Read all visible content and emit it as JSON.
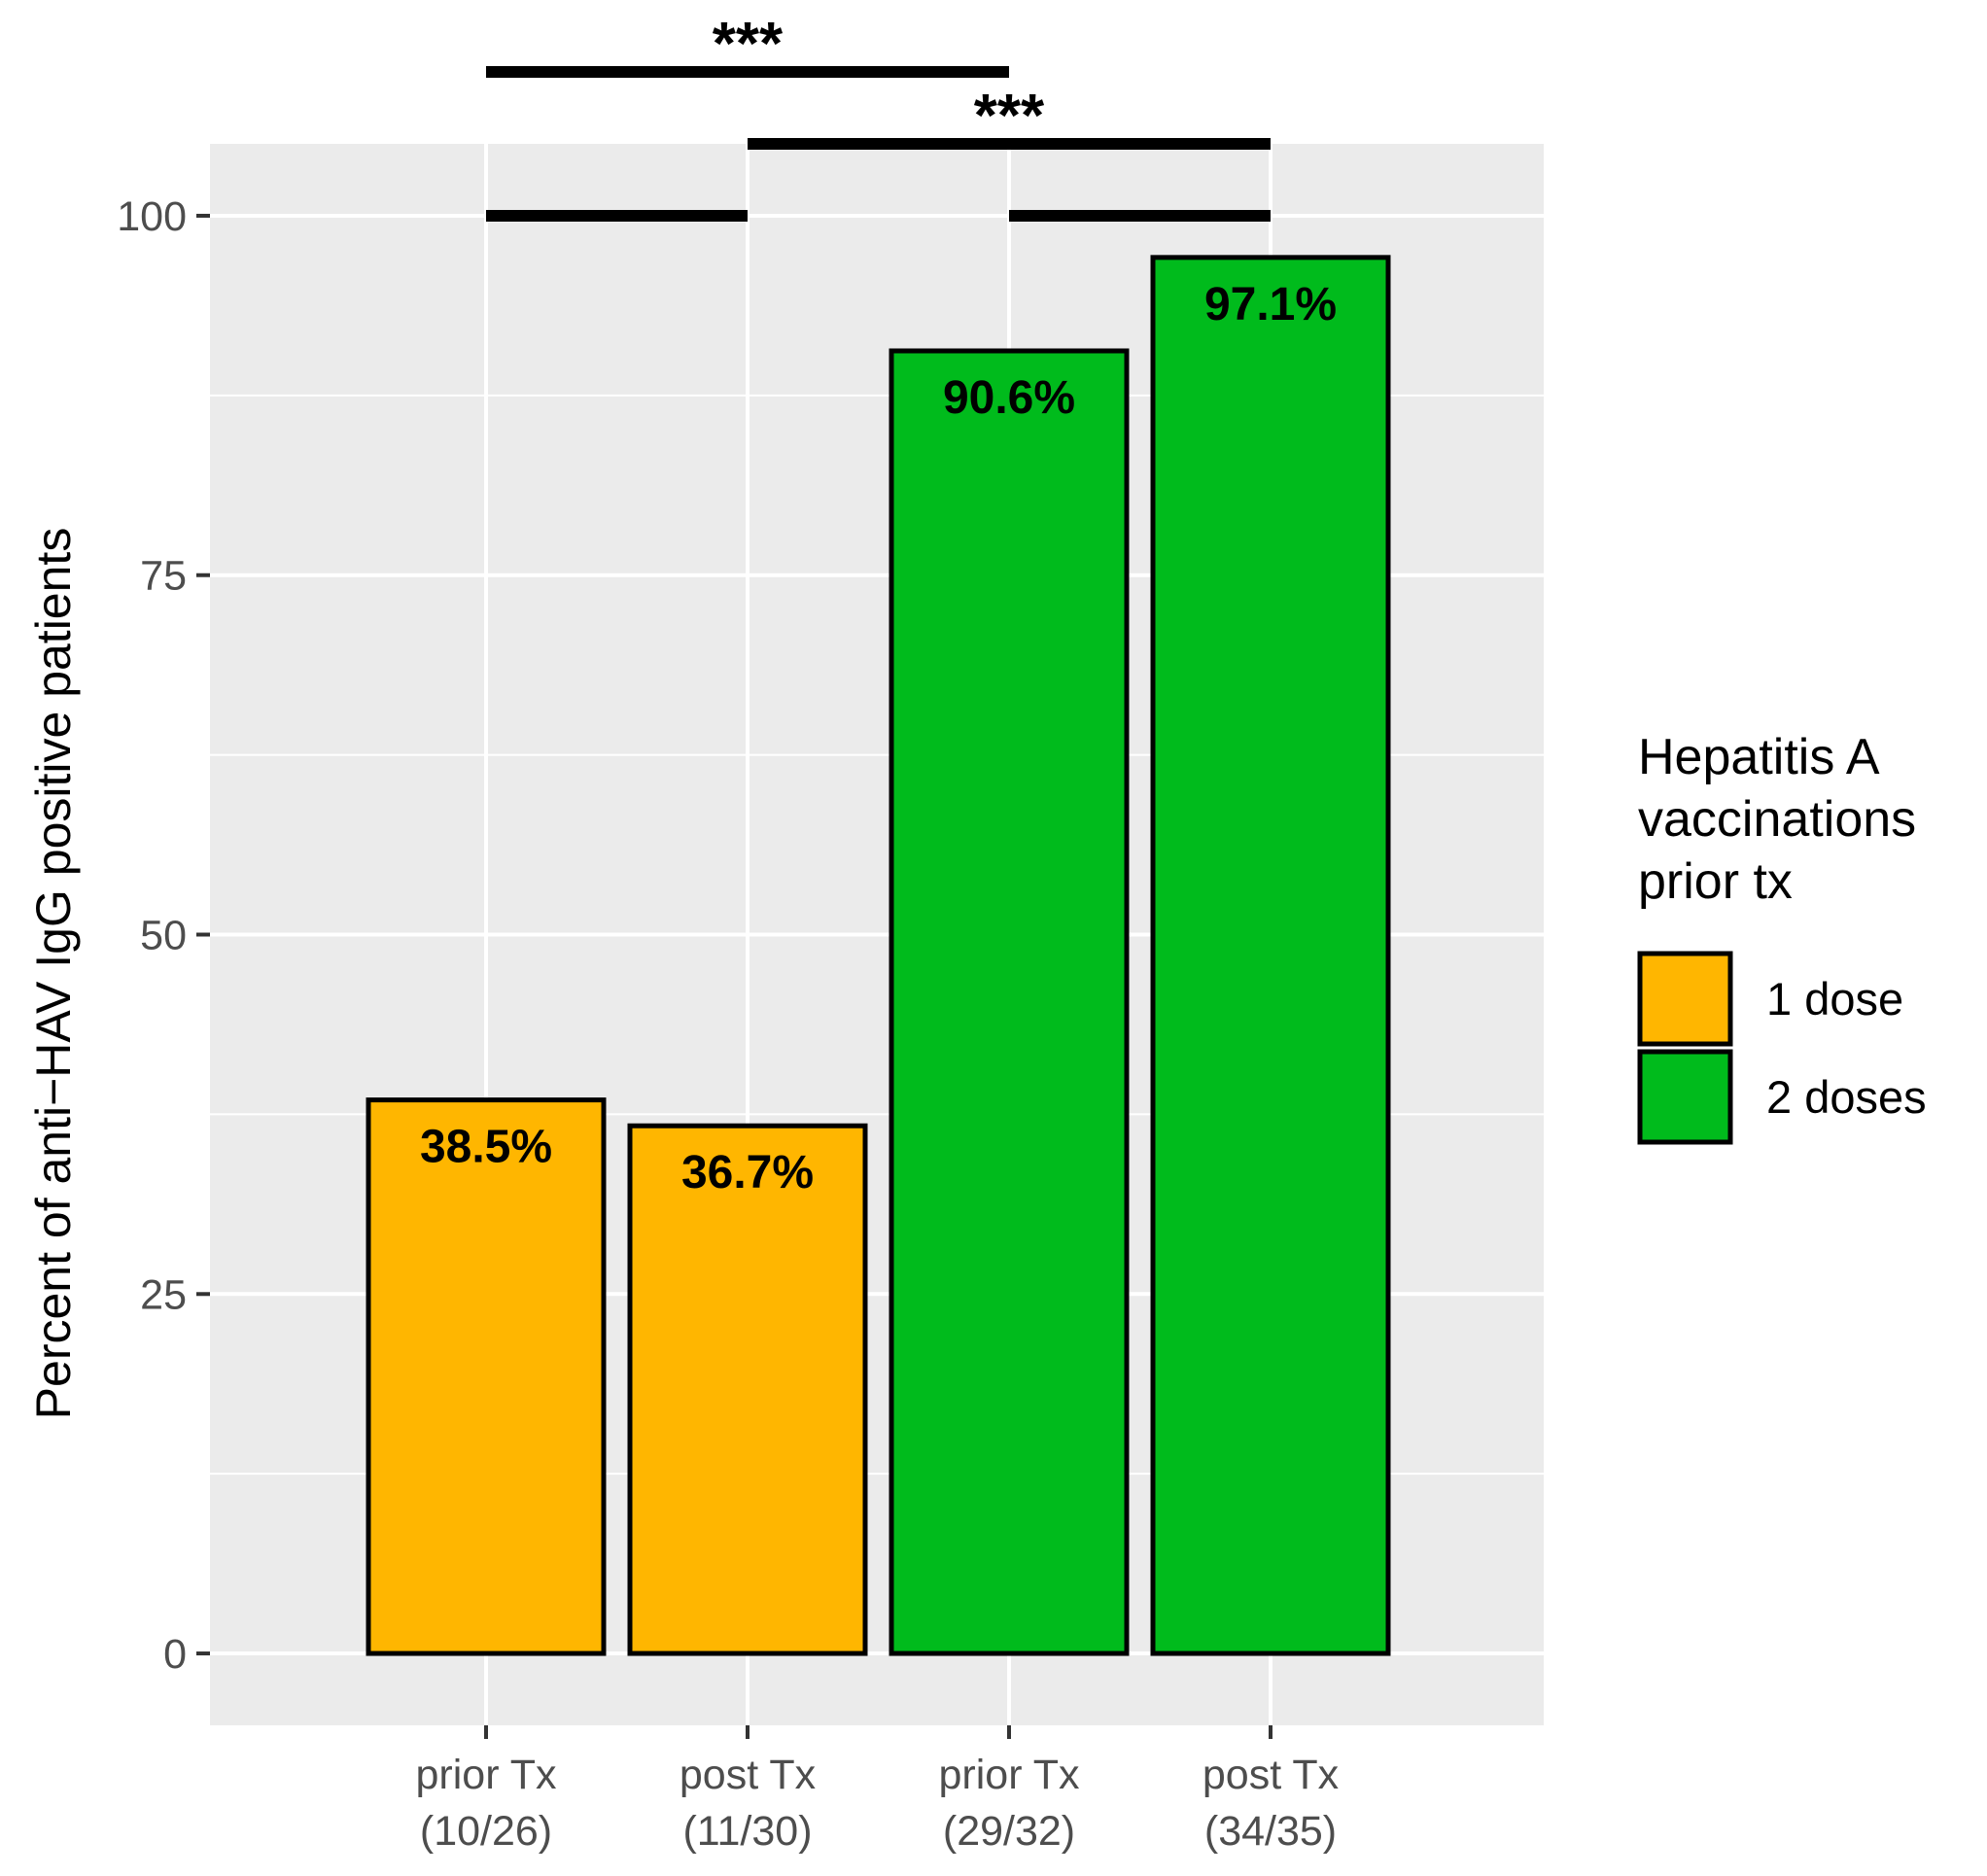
{
  "chart_data": {
    "type": "bar",
    "ylabel": "Percent of anti−HAV IgG positive patients",
    "xlabel": "",
    "ylim": [
      -5,
      105
    ],
    "yticks": [
      0,
      25,
      50,
      75,
      100
    ],
    "grid": true,
    "categories": [
      {
        "line1": "prior Tx",
        "line2": "(10/26)"
      },
      {
        "line1": "post Tx",
        "line2": "(11/30)"
      },
      {
        "line1": "prior Tx",
        "line2": "(29/32)"
      },
      {
        "line1": "post Tx",
        "line2": "(34/35)"
      }
    ],
    "values": [
      38.5,
      36.7,
      90.6,
      97.1
    ],
    "value_labels": [
      "38.5%",
      "36.7%",
      "90.6%",
      "97.1%"
    ],
    "groups": [
      "1 dose",
      "1 dose",
      "2 doses",
      "2 doses"
    ],
    "legend": {
      "title_lines": [
        "Hepatitis A",
        "vaccinations",
        "prior tx"
      ],
      "placement": "right",
      "entries": [
        {
          "label": "1 dose",
          "color": "#FFB600"
        },
        {
          "label": "2 doses",
          "color": "#00BB1C"
        }
      ]
    },
    "significance": [
      {
        "from_group": 0,
        "to_group": 1,
        "y": 100,
        "label": ""
      },
      {
        "from_group": 2,
        "to_group": 3,
        "y": 100,
        "label": ""
      },
      {
        "from_group": 1,
        "to_group": 3,
        "y": 105,
        "label": "***"
      },
      {
        "from_group": 0,
        "to_group": 2,
        "y": 110,
        "label": "***"
      }
    ]
  },
  "colors": {
    "panel_background": "#EBEBEB",
    "grid_line": "#FFFFFF",
    "bar_outline": "#000000"
  }
}
